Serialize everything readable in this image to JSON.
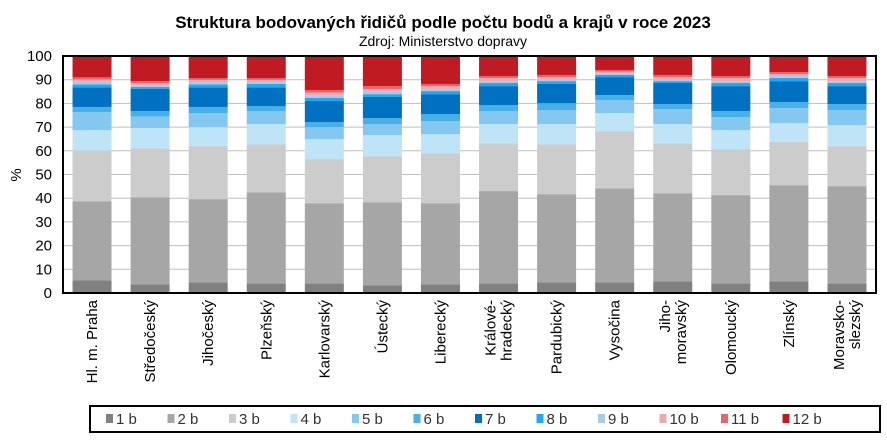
{
  "chart_data": {
    "type": "bar",
    "stacked": true,
    "title": "Struktura bodovaných řidičů podle počtu bodů a krajů v roce 2023",
    "subtitle": "Zdroj: Ministerstvo dopravy",
    "xlabel": "",
    "ylabel": "%",
    "ylim": [
      0,
      100
    ],
    "yticks": [
      "0",
      "10",
      "20",
      "30",
      "40",
      "50",
      "60",
      "70",
      "80",
      "90",
      "100"
    ],
    "grid": true,
    "legend_position": "bottom",
    "categories": [
      [
        "Hl. m. Praha"
      ],
      [
        "Středočeský"
      ],
      [
        "Jihočeský"
      ],
      [
        "Plzeňský"
      ],
      [
        "Karlovarský"
      ],
      [
        "Ústecký"
      ],
      [
        "Liberecký"
      ],
      [
        "Králové-",
        "hradecký"
      ],
      [
        "Pardubický"
      ],
      [
        "Vysočina"
      ],
      [
        "Jiho-",
        "moravský"
      ],
      [
        "Olomoucký"
      ],
      [
        "Zlínský"
      ],
      [
        "Moravsko-",
        "slezský"
      ]
    ],
    "series": [
      {
        "name": "1 b",
        "color": "#808080",
        "values": [
          5.4,
          3.7,
          4.5,
          4.1,
          4.1,
          3.2,
          3.7,
          4.1,
          4.5,
          4.5,
          4.9,
          4.1,
          4.9,
          4.1
        ]
      },
      {
        "name": "2 b",
        "color": "#a6a6a6",
        "values": [
          33.2,
          36.7,
          35.1,
          38.4,
          33.8,
          35.1,
          34.2,
          38.9,
          37.2,
          39.7,
          37.2,
          37.2,
          40.6,
          41.0
        ]
      },
      {
        "name": "3 b",
        "color": "#cccccc",
        "values": [
          21.5,
          20.7,
          22.4,
          20.3,
          18.6,
          19.4,
          21.1,
          20.2,
          21.1,
          24.1,
          21.1,
          19.4,
          18.2,
          16.9
        ]
      },
      {
        "name": "4 b",
        "color": "#bfe3f7",
        "values": [
          8.6,
          8.5,
          8.0,
          8.5,
          8.4,
          8.9,
          8.0,
          8.1,
          8.5,
          7.6,
          8.1,
          8.0,
          8.0,
          8.8
        ]
      },
      {
        "name": "5 b",
        "color": "#84c7f1",
        "values": [
          7.6,
          4.9,
          5.9,
          5.5,
          5.1,
          4.7,
          5.5,
          5.5,
          5.9,
          5.5,
          6.3,
          5.5,
          6.3,
          6.4
        ]
      },
      {
        "name": "6 b",
        "color": "#48afe7",
        "values": [
          2.2,
          2.3,
          2.6,
          2.1,
          2.1,
          2.5,
          3.0,
          2.5,
          2.9,
          2.1,
          2.1,
          2.6,
          2.6,
          2.5
        ]
      },
      {
        "name": "7 b",
        "color": "#0070c0",
        "values": [
          8.3,
          9.3,
          8.3,
          7.9,
          8.9,
          8.9,
          8.4,
          8.0,
          8.1,
          7.6,
          8.9,
          10.5,
          8.8,
          7.6
        ]
      },
      {
        "name": "8 b",
        "color": "#22a8f2",
        "values": [
          1.2,
          0.8,
          1.2,
          1.4,
          1.3,
          1.2,
          1.3,
          1.3,
          1.2,
          0.9,
          0.8,
          1.3,
          1.3,
          1.3
        ]
      },
      {
        "name": "9 b",
        "color": "#a5cbe8",
        "values": [
          1.2,
          0.8,
          1.0,
          1.0,
          1.1,
          1.0,
          0.9,
          0.8,
          0.9,
          0.8,
          0.9,
          0.8,
          0.8,
          0.8
        ]
      },
      {
        "name": "10 b",
        "color": "#e9aab0",
        "values": [
          0.9,
          0.9,
          0.9,
          0.7,
          1.2,
          1.2,
          1.2,
          1.3,
          0.8,
          0.6,
          0.8,
          1.3,
          0.9,
          1.3
        ]
      },
      {
        "name": "11 b",
        "color": "#e8636d",
        "values": [
          0.9,
          0.8,
          0.7,
          0.7,
          1.0,
          1.2,
          0.9,
          0.8,
          0.9,
          0.7,
          0.9,
          0.8,
          0.8,
          0.8
        ]
      },
      {
        "name": "12 b",
        "color": "#c01a22",
        "values": [
          9.0,
          10.6,
          9.4,
          9.4,
          14.4,
          12.7,
          11.8,
          8.5,
          8.0,
          5.9,
          8.0,
          8.5,
          6.8,
          8.5
        ]
      }
    ]
  }
}
